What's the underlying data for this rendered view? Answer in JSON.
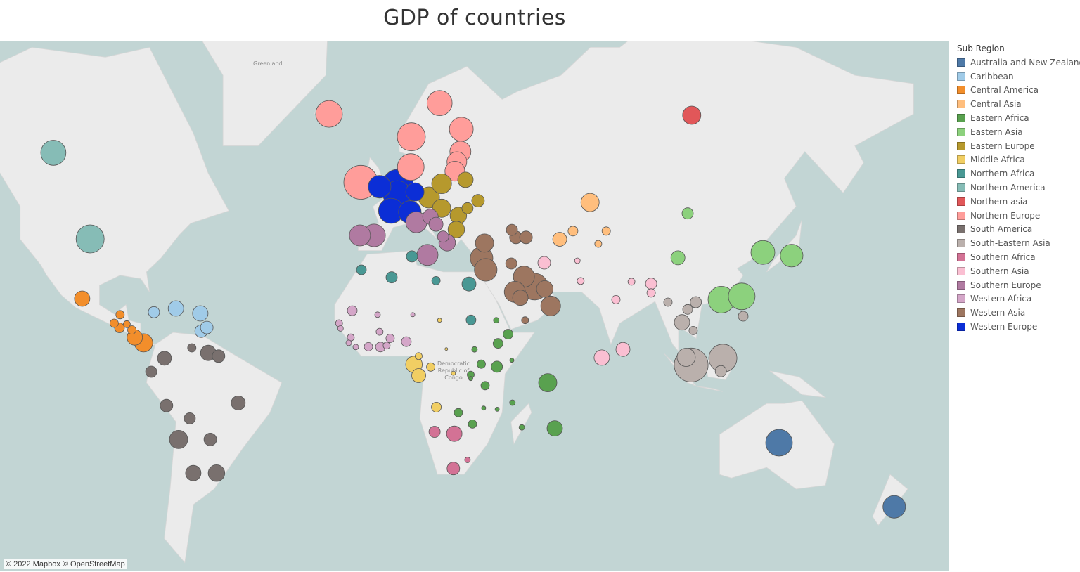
{
  "title": "GDP of countries",
  "map": {
    "attribution": "© 2022 Mapbox © OpenStreetMap",
    "ocean_color": "#c2d5d4",
    "land_color": "#ebebeb",
    "labels": [
      "Greenland",
      "Democratic Republic of Congo"
    ],
    "projection": "mercator"
  },
  "legend": {
    "title": "Sub Region",
    "items": [
      {
        "label": "Australia and New Zealand",
        "color": "#4e79a7"
      },
      {
        "label": "Caribbean",
        "color": "#a0cbe8"
      },
      {
        "label": "Central America",
        "color": "#f28e2b"
      },
      {
        "label": "Central Asia",
        "color": "#ffbe7d"
      },
      {
        "label": "Eastern Africa",
        "color": "#59a14f"
      },
      {
        "label": "Eastern Asia",
        "color": "#8cd17d"
      },
      {
        "label": "Eastern Europe",
        "color": "#b6992d"
      },
      {
        "label": "Middle Africa",
        "color": "#f1ce63"
      },
      {
        "label": "Northern Africa",
        "color": "#499894"
      },
      {
        "label": "Northern America",
        "color": "#86bcb6"
      },
      {
        "label": "Northern asia",
        "color": "#e15759"
      },
      {
        "label": "Northern Europe",
        "color": "#ff9d9a"
      },
      {
        "label": "South America",
        "color": "#79706e"
      },
      {
        "label": "South-Eastern Asia",
        "color": "#bab0ac"
      },
      {
        "label": "Southern Africa",
        "color": "#d37295"
      },
      {
        "label": "Southern Asia",
        "color": "#fabfd2"
      },
      {
        "label": "Southern Europe",
        "color": "#b07aa1"
      },
      {
        "label": "Western Africa",
        "color": "#d4a6c8"
      },
      {
        "label": "Western Asia",
        "color": "#9d7660"
      },
      {
        "label": "Western Europe",
        "color": "#0b2ed6"
      }
    ]
  },
  "chart_data": {
    "type": "bubble-map",
    "title": "GDP of countries",
    "size_encodes": "GDP (relative)",
    "color_encodes": "Sub Region",
    "points": [
      {
        "region": 9,
        "lon": -112.7,
        "lat": 58.8,
        "gdp": 3.2
      },
      {
        "region": 9,
        "lon": -100.2,
        "lat": 40.1,
        "gdp": 4.0
      },
      {
        "region": 2,
        "lon": -102.9,
        "lat": 22.9,
        "gdp": 1.2
      },
      {
        "region": 2,
        "lon": -90.0,
        "lat": 17.8,
        "gdp": 0.36
      },
      {
        "region": 2,
        "lon": -92.0,
        "lat": 15.0,
        "gdp": 0.36
      },
      {
        "region": 2,
        "lon": -87.7,
        "lat": 14.7,
        "gdp": 0.25
      },
      {
        "region": 2,
        "lon": -90.2,
        "lat": 13.5,
        "gdp": 0.49
      },
      {
        "region": 2,
        "lon": -86.0,
        "lat": 12.8,
        "gdp": 0.36
      },
      {
        "region": 2,
        "lon": -85.0,
        "lat": 10.3,
        "gdp": 1.2
      },
      {
        "region": 2,
        "lon": -82.0,
        "lat": 8.5,
        "gdp": 1.7
      },
      {
        "region": 1,
        "lon": -78.5,
        "lat": 18.6,
        "gdp": 0.64
      },
      {
        "region": 1,
        "lon": -71.0,
        "lat": 19.8,
        "gdp": 1.2
      },
      {
        "region": 1,
        "lon": -62.7,
        "lat": 18.2,
        "gdp": 1.2
      },
      {
        "region": 1,
        "lon": -62.4,
        "lat": 12.4,
        "gdp": 0.81
      },
      {
        "region": 1,
        "lon": -60.5,
        "lat": 13.6,
        "gdp": 0.81
      },
      {
        "region": 12,
        "lon": -74.9,
        "lat": 3.3,
        "gdp": 1.0
      },
      {
        "region": 12,
        "lon": -79.4,
        "lat": -1.3,
        "gdp": 0.64
      },
      {
        "region": 12,
        "lon": -65.6,
        "lat": 6.8,
        "gdp": 0.36
      },
      {
        "region": 12,
        "lon": -60.0,
        "lat": 5.1,
        "gdp": 1.2
      },
      {
        "region": 12,
        "lon": -56.5,
        "lat": 4.0,
        "gdp": 0.81
      },
      {
        "region": 12,
        "lon": -74.2,
        "lat": -12.7,
        "gdp": 0.81
      },
      {
        "region": 12,
        "lon": -49.8,
        "lat": -11.8,
        "gdp": 1.0
      },
      {
        "region": 12,
        "lon": -66.3,
        "lat": -16.9,
        "gdp": 0.64
      },
      {
        "region": 12,
        "lon": -70.1,
        "lat": -23.6,
        "gdp": 1.7
      },
      {
        "region": 12,
        "lon": -59.3,
        "lat": -23.6,
        "gdp": 0.81
      },
      {
        "region": 12,
        "lon": -65.1,
        "lat": -33.6,
        "gdp": 1.2
      },
      {
        "region": 12,
        "lon": -57.2,
        "lat": -33.6,
        "gdp": 1.4
      },
      {
        "region": 11,
        "lon": -18.9,
        "lat": 65.0,
        "gdp": 3.6
      },
      {
        "region": 11,
        "lon": 18.7,
        "lat": 66.5,
        "gdp": 3.2
      },
      {
        "region": 11,
        "lon": 9.1,
        "lat": 61.5,
        "gdp": 4.0
      },
      {
        "region": 11,
        "lon": 26.1,
        "lat": 62.7,
        "gdp": 2.9
      },
      {
        "region": 11,
        "lon": 8.9,
        "lat": 56.2,
        "gdp": 3.6
      },
      {
        "region": 11,
        "lon": 24.6,
        "lat": 57.2,
        "gdp": 2.0
      },
      {
        "region": 11,
        "lon": 23.9,
        "lat": 55.4,
        "gdp": 2.0
      },
      {
        "region": 11,
        "lon": 25.8,
        "lat": 59.0,
        "gdp": 2.25
      },
      {
        "region": 11,
        "lon": -8.1,
        "lat": 53.2,
        "gdp": 5.8
      },
      {
        "region": 19,
        "lon": -1.7,
        "lat": 52.3,
        "gdp": 2.6
      },
      {
        "region": 19,
        "lon": 4.5,
        "lat": 52.7,
        "gdp": 4.8
      },
      {
        "region": 19,
        "lon": 4.3,
        "lat": 50.6,
        "gdp": 4.0
      },
      {
        "region": 19,
        "lon": 10.3,
        "lat": 51.2,
        "gdp": 1.7
      },
      {
        "region": 19,
        "lon": 2.2,
        "lat": 47.0,
        "gdp": 3.2
      },
      {
        "region": 19,
        "lon": 8.6,
        "lat": 46.7,
        "gdp": 2.6
      },
      {
        "region": 6,
        "lon": 19.4,
        "lat": 52.9,
        "gdp": 2.0
      },
      {
        "region": 6,
        "lon": 27.5,
        "lat": 53.7,
        "gdp": 1.2
      },
      {
        "region": 6,
        "lon": 15.1,
        "lat": 50.0,
        "gdp": 2.25
      },
      {
        "region": 6,
        "lon": 19.4,
        "lat": 47.6,
        "gdp": 1.7
      },
      {
        "region": 6,
        "lon": 31.8,
        "lat": 49.3,
        "gdp": 0.81
      },
      {
        "region": 6,
        "lon": 28.2,
        "lat": 47.6,
        "gdp": 0.64
      },
      {
        "region": 6,
        "lon": 25.1,
        "lat": 45.9,
        "gdp": 1.4
      },
      {
        "region": 6,
        "lon": 24.4,
        "lat": 42.5,
        "gdp": 1.4
      },
      {
        "region": 16,
        "lon": -8.4,
        "lat": 41.0,
        "gdp": 2.25
      },
      {
        "region": 16,
        "lon": -3.6,
        "lat": 41.0,
        "gdp": 2.6
      },
      {
        "region": 16,
        "lon": 10.8,
        "lat": 44.3,
        "gdp": 2.25
      },
      {
        "region": 16,
        "lon": 15.6,
        "lat": 45.6,
        "gdp": 1.2
      },
      {
        "region": 16,
        "lon": 17.5,
        "lat": 43.8,
        "gdp": 1.0
      },
      {
        "region": 16,
        "lon": 14.6,
        "lat": 35.8,
        "gdp": 2.25
      },
      {
        "region": 16,
        "lon": 19.9,
        "lat": 40.7,
        "gdp": 0.64
      },
      {
        "region": 16,
        "lon": 21.3,
        "lat": 39.1,
        "gdp": 1.4
      },
      {
        "region": 8,
        "lon": 9.3,
        "lat": 35.4,
        "gdp": 0.64
      },
      {
        "region": 8,
        "lon": -7.9,
        "lat": 31.6,
        "gdp": 0.49
      },
      {
        "region": 8,
        "lon": 2.4,
        "lat": 29.4,
        "gdp": 0.64
      },
      {
        "region": 8,
        "lon": 17.5,
        "lat": 28.4,
        "gdp": 0.36
      },
      {
        "region": 8,
        "lon": 28.7,
        "lat": 27.4,
        "gdp": 1.0
      },
      {
        "region": 8,
        "lon": 29.4,
        "lat": 16.1,
        "gdp": 0.49
      },
      {
        "region": 17,
        "lon": -11.0,
        "lat": 19.1,
        "gdp": 0.49
      },
      {
        "region": 17,
        "lon": -15.5,
        "lat": 15.0,
        "gdp": 0.25
      },
      {
        "region": 17,
        "lon": -15.0,
        "lat": 13.3,
        "gdp": 0.16
      },
      {
        "region": 17,
        "lon": -11.5,
        "lat": 10.3,
        "gdp": 0.25
      },
      {
        "region": 17,
        "lon": -12.2,
        "lat": 8.5,
        "gdp": 0.16
      },
      {
        "region": 17,
        "lon": -9.8,
        "lat": 7.1,
        "gdp": 0.16
      },
      {
        "region": 17,
        "lon": -5.5,
        "lat": 7.2,
        "gdp": 0.36
      },
      {
        "region": 17,
        "lon": -1.4,
        "lat": 7.1,
        "gdp": 0.49
      },
      {
        "region": 17,
        "lon": 0.7,
        "lat": 7.6,
        "gdp": 0.25
      },
      {
        "region": 17,
        "lon": 1.9,
        "lat": 10.0,
        "gdp": 0.36
      },
      {
        "region": 17,
        "lon": -2.4,
        "lat": 17.8,
        "gdp": 0.16
      },
      {
        "region": 17,
        "lon": -1.7,
        "lat": 12.2,
        "gdp": 0.25
      },
      {
        "region": 17,
        "lon": 9.6,
        "lat": 17.8,
        "gdp": 0.09
      },
      {
        "region": 17,
        "lon": 7.4,
        "lat": 8.9,
        "gdp": 0.49
      },
      {
        "region": 7,
        "lon": 10.0,
        "lat": 1.2,
        "gdp": 1.4
      },
      {
        "region": 7,
        "lon": 11.6,
        "lat": -2.6,
        "gdp": 1.0
      },
      {
        "region": 7,
        "lon": 11.6,
        "lat": 4.0,
        "gdp": 0.25
      },
      {
        "region": 7,
        "lon": 15.7,
        "lat": 0.3,
        "gdp": 0.36
      },
      {
        "region": 7,
        "lon": 18.7,
        "lat": 16.0,
        "gdp": 0.09
      },
      {
        "region": 7,
        "lon": 21.0,
        "lat": 6.4,
        "gdp": 0.04
      },
      {
        "region": 7,
        "lon": 23.4,
        "lat": -1.8,
        "gdp": 0.09
      },
      {
        "region": 7,
        "lon": 17.6,
        "lat": -13.2,
        "gdp": 0.49
      },
      {
        "region": 4,
        "lon": 38.0,
        "lat": 16.0,
        "gdp": 0.16
      },
      {
        "region": 4,
        "lon": 42.0,
        "lat": 11.4,
        "gdp": 0.49
      },
      {
        "region": 4,
        "lon": 38.6,
        "lat": 8.3,
        "gdp": 0.49
      },
      {
        "region": 4,
        "lon": 30.6,
        "lat": 6.3,
        "gdp": 0.16
      },
      {
        "region": 4,
        "lon": 32.9,
        "lat": 1.3,
        "gdp": 0.36
      },
      {
        "region": 4,
        "lon": 38.2,
        "lat": 0.4,
        "gdp": 0.64
      },
      {
        "region": 4,
        "lon": 43.3,
        "lat": 2.6,
        "gdp": 0.09
      },
      {
        "region": 4,
        "lon": 29.3,
        "lat": -2.3,
        "gdp": 0.25
      },
      {
        "region": 4,
        "lon": 29.3,
        "lat": -3.6,
        "gdp": 0.09
      },
      {
        "region": 4,
        "lon": 34.2,
        "lat": -6.0,
        "gdp": 0.36
      },
      {
        "region": 4,
        "lon": 55.5,
        "lat": -5.0,
        "gdp": 1.7
      },
      {
        "region": 4,
        "lon": 43.5,
        "lat": -11.7,
        "gdp": 0.16
      },
      {
        "region": 4,
        "lon": 33.7,
        "lat": -13.5,
        "gdp": 0.09
      },
      {
        "region": 4,
        "lon": 38.3,
        "lat": -13.9,
        "gdp": 0.09
      },
      {
        "region": 4,
        "lon": 25.1,
        "lat": -15.0,
        "gdp": 0.36
      },
      {
        "region": 4,
        "lon": 29.9,
        "lat": -18.7,
        "gdp": 0.36
      },
      {
        "region": 4,
        "lon": 46.7,
        "lat": -19.8,
        "gdp": 0.16
      },
      {
        "region": 4,
        "lon": 57.9,
        "lat": -20.1,
        "gdp": 1.2
      },
      {
        "region": 14,
        "lon": 17.0,
        "lat": -21.2,
        "gdp": 0.64
      },
      {
        "region": 14,
        "lon": 23.7,
        "lat": -21.8,
        "gdp": 1.2
      },
      {
        "region": 14,
        "lon": 28.2,
        "lat": -29.8,
        "gdp": 0.16
      },
      {
        "region": 14,
        "lon": 23.4,
        "lat": -32.3,
        "gdp": 0.81
      },
      {
        "region": 18,
        "lon": 43.3,
        "lat": 42.4,
        "gdp": 0.64
      },
      {
        "region": 18,
        "lon": 44.7,
        "lat": 40.5,
        "gdp": 0.81
      },
      {
        "region": 18,
        "lon": 48.1,
        "lat": 40.5,
        "gdp": 0.81
      },
      {
        "region": 18,
        "lon": 34.0,
        "lat": 39.0,
        "gdp": 1.7
      },
      {
        "region": 18,
        "lon": 33.0,
        "lat": 34.9,
        "gdp": 2.6
      },
      {
        "region": 18,
        "lon": 34.4,
        "lat": 31.6,
        "gdp": 2.6
      },
      {
        "region": 18,
        "lon": 43.1,
        "lat": 33.4,
        "gdp": 0.64
      },
      {
        "region": 18,
        "lon": 47.4,
        "lat": 29.6,
        "gdp": 2.25
      },
      {
        "region": 18,
        "lon": 44.3,
        "lat": 25.0,
        "gdp": 2.25
      },
      {
        "region": 18,
        "lon": 51.0,
        "lat": 26.6,
        "gdp": 3.6
      },
      {
        "region": 18,
        "lon": 56.5,
        "lat": 20.6,
        "gdp": 2.0
      },
      {
        "region": 18,
        "lon": 47.8,
        "lat": 16.0,
        "gdp": 0.25
      },
      {
        "region": 18,
        "lon": 54.5,
        "lat": 25.9,
        "gdp": 1.4
      },
      {
        "region": 18,
        "lon": 46.2,
        "lat": 23.2,
        "gdp": 1.2
      },
      {
        "region": 3,
        "lon": 69.9,
        "lat": 48.9,
        "gdp": 1.7
      },
      {
        "region": 3,
        "lon": 64.1,
        "lat": 42.1,
        "gdp": 0.49
      },
      {
        "region": 3,
        "lon": 75.4,
        "lat": 42.1,
        "gdp": 0.36
      },
      {
        "region": 3,
        "lon": 59.6,
        "lat": 40.0,
        "gdp": 1.0
      },
      {
        "region": 3,
        "lon": 72.7,
        "lat": 38.8,
        "gdp": 0.25
      },
      {
        "region": 15,
        "lon": 54.3,
        "lat": 33.6,
        "gdp": 0.81
      },
      {
        "region": 15,
        "lon": 65.6,
        "lat": 34.2,
        "gdp": 0.16
      },
      {
        "region": 15,
        "lon": 66.7,
        "lat": 28.3,
        "gdp": 0.25
      },
      {
        "region": 15,
        "lon": 84.0,
        "lat": 28.1,
        "gdp": 0.25
      },
      {
        "region": 15,
        "lon": 90.7,
        "lat": 27.5,
        "gdp": 0.64
      },
      {
        "region": 15,
        "lon": 90.7,
        "lat": 24.7,
        "gdp": 0.36
      },
      {
        "region": 15,
        "lon": 78.7,
        "lat": 22.6,
        "gdp": 0.36
      },
      {
        "region": 15,
        "lon": 73.9,
        "lat": 3.5,
        "gdp": 1.2
      },
      {
        "region": 15,
        "lon": 81.1,
        "lat": 6.3,
        "gdp": 1.0
      },
      {
        "region": 5,
        "lon": 103.1,
        "lat": 46.4,
        "gdp": 0.64
      },
      {
        "region": 5,
        "lon": 99.8,
        "lat": 35.0,
        "gdp": 1.0
      },
      {
        "region": 5,
        "lon": 128.7,
        "lat": 36.5,
        "gdp": 2.9
      },
      {
        "region": 5,
        "lon": 138.5,
        "lat": 35.6,
        "gdp": 2.6
      },
      {
        "region": 5,
        "lon": 114.6,
        "lat": 22.6,
        "gdp": 3.6
      },
      {
        "region": 5,
        "lon": 121.5,
        "lat": 23.6,
        "gdp": 3.6
      },
      {
        "region": 13,
        "lon": 96.4,
        "lat": 21.8,
        "gdp": 0.36
      },
      {
        "region": 13,
        "lon": 103.1,
        "lat": 19.5,
        "gdp": 0.49
      },
      {
        "region": 13,
        "lon": 105.9,
        "lat": 21.8,
        "gdp": 0.64
      },
      {
        "region": 13,
        "lon": 101.2,
        "lat": 15.3,
        "gdp": 1.2
      },
      {
        "region": 13,
        "lon": 105.0,
        "lat": 12.6,
        "gdp": 0.36
      },
      {
        "region": 13,
        "lon": 122.0,
        "lat": 17.3,
        "gdp": 0.49
      },
      {
        "region": 13,
        "lon": 104.3,
        "lat": 1.0,
        "gdp": 5.8
      },
      {
        "region": 13,
        "lon": 102.6,
        "lat": 3.6,
        "gdp": 1.7
      },
      {
        "region": 13,
        "lon": 115.1,
        "lat": 3.3,
        "gdp": 4.0
      },
      {
        "region": 13,
        "lon": 114.4,
        "lat": -1.1,
        "gdp": 0.64
      },
      {
        "region": 10,
        "lon": 104.5,
        "lat": 64.8,
        "gdp": 1.7
      },
      {
        "region": 0,
        "lon": 134.2,
        "lat": -24.6,
        "gdp": 3.6
      },
      {
        "region": 0,
        "lon": 173.4,
        "lat": -42.6,
        "gdp": 2.6
      }
    ]
  }
}
